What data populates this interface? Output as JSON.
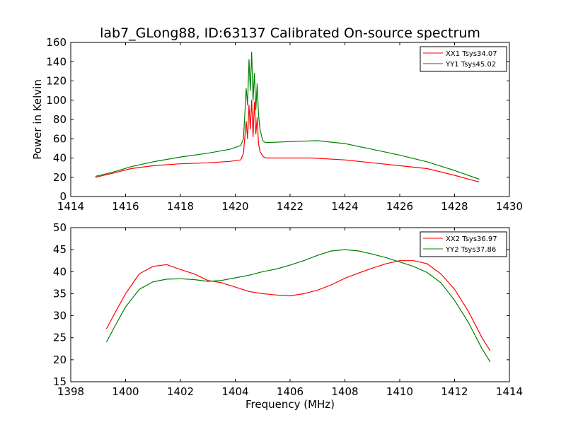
{
  "figure": {
    "title": "lab7_GLong88, ID:63137 Calibrated On-source spectrum"
  },
  "colors": {
    "red": "#ff0000",
    "green": "#008000"
  },
  "chart_data": [
    {
      "type": "line",
      "title": "lab7_GLong88, ID:63137 Calibrated On-source spectrum",
      "xlabel": "",
      "ylabel": "Power in Kelvin",
      "xlim": [
        1414,
        1430
      ],
      "ylim": [
        0,
        160
      ],
      "xticks": [
        1414,
        1416,
        1418,
        1420,
        1422,
        1424,
        1426,
        1428,
        1430
      ],
      "yticks": [
        0,
        20,
        40,
        60,
        80,
        100,
        120,
        140,
        160
      ],
      "legend_position": "top-right",
      "series": [
        {
          "name": "XX1 Tsys34.07",
          "color": "#ff0000",
          "points": [
            [
              1414.9,
              20
            ],
            [
              1415.5,
              24
            ],
            [
              1416.2,
              29
            ],
            [
              1417,
              32
            ],
            [
              1418,
              34
            ],
            [
              1419,
              35
            ],
            [
              1419.8,
              36.5
            ],
            [
              1420.2,
              38
            ],
            [
              1420.3,
              45
            ],
            [
              1420.4,
              78
            ],
            [
              1420.45,
              60
            ],
            [
              1420.5,
              95
            ],
            [
              1420.55,
              70
            ],
            [
              1420.6,
              100
            ],
            [
              1420.65,
              62
            ],
            [
              1420.7,
              98
            ],
            [
              1420.75,
              65
            ],
            [
              1420.8,
              82
            ],
            [
              1420.85,
              55
            ],
            [
              1420.9,
              47
            ],
            [
              1421.0,
              42
            ],
            [
              1421.1,
              40
            ],
            [
              1422,
              40
            ],
            [
              1422.8,
              40
            ],
            [
              1424,
              38
            ],
            [
              1425,
              35
            ],
            [
              1426,
              32
            ],
            [
              1427,
              29
            ],
            [
              1428,
              22
            ],
            [
              1428.9,
              15
            ]
          ]
        },
        {
          "name": "YY1 Tsys45.02",
          "color": "#008000",
          "points": [
            [
              1414.9,
              21
            ],
            [
              1415.5,
              25
            ],
            [
              1416.2,
              31
            ],
            [
              1417,
              36
            ],
            [
              1418,
              41
            ],
            [
              1419,
              45
            ],
            [
              1419.8,
              49
            ],
            [
              1420.2,
              53
            ],
            [
              1420.3,
              60
            ],
            [
              1420.4,
              112
            ],
            [
              1420.45,
              95
            ],
            [
              1420.5,
              142
            ],
            [
              1420.55,
              110
            ],
            [
              1420.6,
              150
            ],
            [
              1420.65,
              100
            ],
            [
              1420.7,
              128
            ],
            [
              1420.75,
              90
            ],
            [
              1420.8,
              117
            ],
            [
              1420.85,
              85
            ],
            [
              1420.9,
              70
            ],
            [
              1421.0,
              58
            ],
            [
              1421.1,
              56
            ],
            [
              1422,
              57
            ],
            [
              1423,
              58
            ],
            [
              1424,
              55
            ],
            [
              1425,
              49
            ],
            [
              1426,
              43
            ],
            [
              1427,
              36
            ],
            [
              1428,
              27
            ],
            [
              1428.9,
              18
            ]
          ]
        }
      ]
    },
    {
      "type": "line",
      "title": "",
      "xlabel": "Frequency (MHz)",
      "ylabel": "",
      "xlim": [
        1398,
        1414
      ],
      "ylim": [
        15,
        50
      ],
      "xticks": [
        1398,
        1400,
        1402,
        1404,
        1406,
        1408,
        1410,
        1412,
        1414
      ],
      "yticks": [
        15,
        20,
        25,
        30,
        35,
        40,
        45,
        50
      ],
      "legend_position": "top-right",
      "series": [
        {
          "name": "XX2 Tsys36.97",
          "color": "#ff0000",
          "points": [
            [
              1399.3,
              27
            ],
            [
              1399.6,
              30.5
            ],
            [
              1400,
              35
            ],
            [
              1400.5,
              39.5
            ],
            [
              1401,
              41.2
            ],
            [
              1401.5,
              41.6
            ],
            [
              1402,
              40.5
            ],
            [
              1402.5,
              39.5
            ],
            [
              1403,
              38
            ],
            [
              1403.5,
              37.5
            ],
            [
              1404,
              36.5
            ],
            [
              1404.5,
              35.5
            ],
            [
              1405,
              35
            ],
            [
              1405.5,
              34.7
            ],
            [
              1406,
              34.5
            ],
            [
              1406.5,
              35
            ],
            [
              1407,
              35.8
            ],
            [
              1407.5,
              37
            ],
            [
              1408,
              38.5
            ],
            [
              1408.5,
              39.7
            ],
            [
              1409,
              40.8
            ],
            [
              1409.5,
              41.8
            ],
            [
              1410,
              42.5
            ],
            [
              1410.5,
              42.5
            ],
            [
              1411,
              41.8
            ],
            [
              1411.5,
              39.5
            ],
            [
              1412,
              36
            ],
            [
              1412.5,
              31
            ],
            [
              1413,
              25
            ],
            [
              1413.3,
              22
            ]
          ]
        },
        {
          "name": "YY2 Tsys37.86",
          "color": "#008000",
          "points": [
            [
              1399.3,
              24
            ],
            [
              1399.6,
              27.5
            ],
            [
              1400,
              32
            ],
            [
              1400.5,
              36
            ],
            [
              1401,
              37.7
            ],
            [
              1401.5,
              38.3
            ],
            [
              1402,
              38.4
            ],
            [
              1402.5,
              38.2
            ],
            [
              1403,
              37.8
            ],
            [
              1403.5,
              38
            ],
            [
              1404,
              38.6
            ],
            [
              1404.5,
              39.2
            ],
            [
              1405,
              40
            ],
            [
              1405.5,
              40.6
            ],
            [
              1406,
              41.5
            ],
            [
              1406.5,
              42.5
            ],
            [
              1407,
              43.7
            ],
            [
              1407.5,
              44.7
            ],
            [
              1408,
              45
            ],
            [
              1408.5,
              44.7
            ],
            [
              1409,
              44
            ],
            [
              1409.5,
              43.2
            ],
            [
              1410,
              42.2
            ],
            [
              1410.5,
              41.2
            ],
            [
              1411,
              39.8
            ],
            [
              1411.5,
              37.5
            ],
            [
              1412,
              33.5
            ],
            [
              1412.5,
              28.5
            ],
            [
              1413,
              22.5
            ],
            [
              1413.3,
              19.5
            ]
          ]
        }
      ]
    }
  ]
}
